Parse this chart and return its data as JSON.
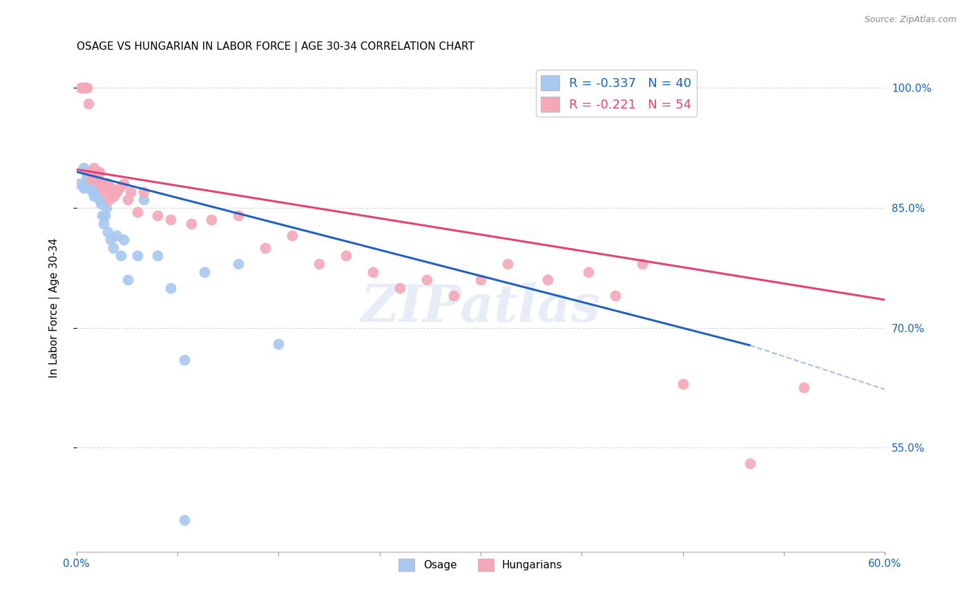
{
  "title": "OSAGE VS HUNGARIAN IN LABOR FORCE | AGE 30-34 CORRELATION CHART",
  "source": "Source: ZipAtlas.com",
  "ylabel": "In Labor Force | Age 30-34",
  "xmin": 0.0,
  "xmax": 0.6,
  "ymin": 0.42,
  "ymax": 1.03,
  "right_yticks": [
    1.0,
    0.85,
    0.7,
    0.55
  ],
  "right_yticklabels": [
    "100.0%",
    "85.0%",
    "70.0%",
    "55.0%"
  ],
  "legend_blue": "R = -0.337   N = 40",
  "legend_pink": "R = -0.221   N = 54",
  "watermark": "ZIPatlas",
  "osage_x": [
    0.002,
    0.005,
    0.005,
    0.007,
    0.007,
    0.008,
    0.009,
    0.01,
    0.01,
    0.011,
    0.011,
    0.012,
    0.013,
    0.013,
    0.014,
    0.015,
    0.015,
    0.016,
    0.017,
    0.018,
    0.019,
    0.02,
    0.021,
    0.022,
    0.023,
    0.025,
    0.027,
    0.03,
    0.033,
    0.035,
    0.038,
    0.045,
    0.05,
    0.06,
    0.07,
    0.08,
    0.095,
    0.12,
    0.15,
    0.08
  ],
  "osage_y": [
    0.88,
    0.9,
    0.875,
    0.895,
    0.885,
    0.89,
    0.875,
    0.895,
    0.88,
    0.885,
    0.875,
    0.87,
    0.885,
    0.865,
    0.875,
    0.88,
    0.87,
    0.865,
    0.86,
    0.855,
    0.84,
    0.83,
    0.84,
    0.85,
    0.82,
    0.81,
    0.8,
    0.815,
    0.79,
    0.81,
    0.76,
    0.79,
    0.86,
    0.79,
    0.75,
    0.66,
    0.77,
    0.78,
    0.68,
    0.46
  ],
  "hungarian_x": [
    0.003,
    0.005,
    0.006,
    0.007,
    0.007,
    0.008,
    0.009,
    0.01,
    0.011,
    0.012,
    0.013,
    0.014,
    0.015,
    0.016,
    0.017,
    0.018,
    0.019,
    0.02,
    0.021,
    0.022,
    0.023,
    0.024,
    0.025,
    0.026,
    0.028,
    0.03,
    0.032,
    0.035,
    0.038,
    0.04,
    0.045,
    0.05,
    0.06,
    0.07,
    0.085,
    0.1,
    0.12,
    0.14,
    0.16,
    0.18,
    0.2,
    0.22,
    0.24,
    0.26,
    0.28,
    0.3,
    0.32,
    0.35,
    0.38,
    0.4,
    0.42,
    0.45,
    0.5,
    0.54
  ],
  "hungarian_y": [
    1.0,
    1.0,
    1.0,
    1.0,
    1.0,
    1.0,
    0.98,
    0.895,
    0.885,
    0.89,
    0.9,
    0.885,
    0.895,
    0.885,
    0.895,
    0.88,
    0.875,
    0.875,
    0.87,
    0.88,
    0.88,
    0.86,
    0.875,
    0.87,
    0.865,
    0.87,
    0.875,
    0.88,
    0.86,
    0.87,
    0.845,
    0.87,
    0.84,
    0.835,
    0.83,
    0.835,
    0.84,
    0.8,
    0.815,
    0.78,
    0.79,
    0.77,
    0.75,
    0.76,
    0.74,
    0.76,
    0.78,
    0.76,
    0.77,
    0.74,
    0.78,
    0.63,
    0.53,
    0.625
  ],
  "blue_color": "#a8c8f0",
  "pink_color": "#f4a8b8",
  "blue_line_color": "#2060c0",
  "pink_line_color": "#e84070",
  "dashed_line_color": "#a8c0e0",
  "background_color": "#ffffff",
  "grid_color": "#d8d8d8",
  "blue_line_x": [
    0.0,
    0.5
  ],
  "blue_line_y": [
    0.895,
    0.678
  ],
  "pink_line_x": [
    0.0,
    0.6
  ],
  "pink_line_y": [
    0.898,
    0.735
  ],
  "dash_line_x": [
    0.5,
    0.6
  ],
  "dash_line_y": [
    0.678,
    0.623
  ]
}
